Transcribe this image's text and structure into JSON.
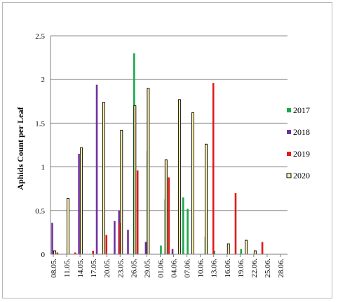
{
  "chart_data": {
    "type": "bar",
    "ylabel": "Aphids Count per Leaf",
    "ylim": [
      0,
      2.5
    ],
    "yticks": [
      "0",
      "0.5",
      "1",
      "1.5",
      "2",
      "2.5"
    ],
    "x_tick_labels": [
      "08.05.",
      "11.05.",
      "14.05.",
      "17.05.",
      "20.05.",
      "23.05.",
      "26.05.",
      "29.05.",
      "01.06.",
      "04.06.",
      "07.06.",
      "10.06.",
      "13.06.",
      "16.06.",
      "19.06.",
      "22.06.",
      "25.06.",
      "28.06."
    ],
    "legend_position": "right",
    "series": [
      {
        "name": "2017",
        "color": "#1aa84a",
        "points": [
          {
            "x": "26.05.",
            "y": 2.3
          },
          {
            "x": "29.05.",
            "y": 1.18
          },
          {
            "x": "01.06.",
            "y": 0.1
          },
          {
            "x": "02.06.",
            "y": 0.63
          },
          {
            "x": "06.06.",
            "y": 0.65
          },
          {
            "x": "07.06.",
            "y": 0.52
          },
          {
            "x": "11.06.",
            "y": 0.2
          },
          {
            "x": "13.06.",
            "y": 0.04
          },
          {
            "x": "19.06.",
            "y": 0.06
          }
        ]
      },
      {
        "name": "2018",
        "color": "#7030a0",
        "points": [
          {
            "x": "08.05.",
            "y": 0.36
          },
          {
            "x": "14.05.",
            "y": 1.15
          },
          {
            "x": "18.05.",
            "y": 1.94
          },
          {
            "x": "22.05.",
            "y": 0.38
          },
          {
            "x": "23.05.",
            "y": 0.5
          },
          {
            "x": "25.05.",
            "y": 0.28
          },
          {
            "x": "29.05.",
            "y": 0.14
          },
          {
            "x": "04.06.",
            "y": 0.06
          }
        ]
      },
      {
        "name": "2019",
        "color": "#e01b1b",
        "points": [
          {
            "x": "09.05.",
            "y": 0.02
          },
          {
            "x": "13.05.",
            "y": 0.02
          },
          {
            "x": "17.05.",
            "y": 0.04
          },
          {
            "x": "20.05.",
            "y": 0.22
          },
          {
            "x": "23.05.",
            "y": 0.36
          },
          {
            "x": "27.05.",
            "y": 0.96
          },
          {
            "x": "03.06.",
            "y": 0.88
          },
          {
            "x": "13.06.",
            "y": 1.96
          },
          {
            "x": "18.06.",
            "y": 0.7
          },
          {
            "x": "24.06.",
            "y": 0.14
          }
        ]
      },
      {
        "name": "2020",
        "color": "#fff2a8",
        "border": "#000000",
        "points": [
          {
            "x": "08.05.",
            "y": 0.04
          },
          {
            "x": "11.05.",
            "y": 0.64
          },
          {
            "x": "14.05.",
            "y": 1.22
          },
          {
            "x": "19.05.",
            "y": 1.74
          },
          {
            "x": "23.05.",
            "y": 1.42
          },
          {
            "x": "26.05.",
            "y": 1.7
          },
          {
            "x": "29.05.",
            "y": 1.9
          },
          {
            "x": "02.06.",
            "y": 1.08
          },
          {
            "x": "05.06.",
            "y": 1.77
          },
          {
            "x": "08.06.",
            "y": 1.62
          },
          {
            "x": "11.06.",
            "y": 1.26
          },
          {
            "x": "16.06.",
            "y": 0.12
          },
          {
            "x": "20.06.",
            "y": 0.16
          },
          {
            "x": "22.06.",
            "y": 0.04
          }
        ]
      }
    ]
  }
}
